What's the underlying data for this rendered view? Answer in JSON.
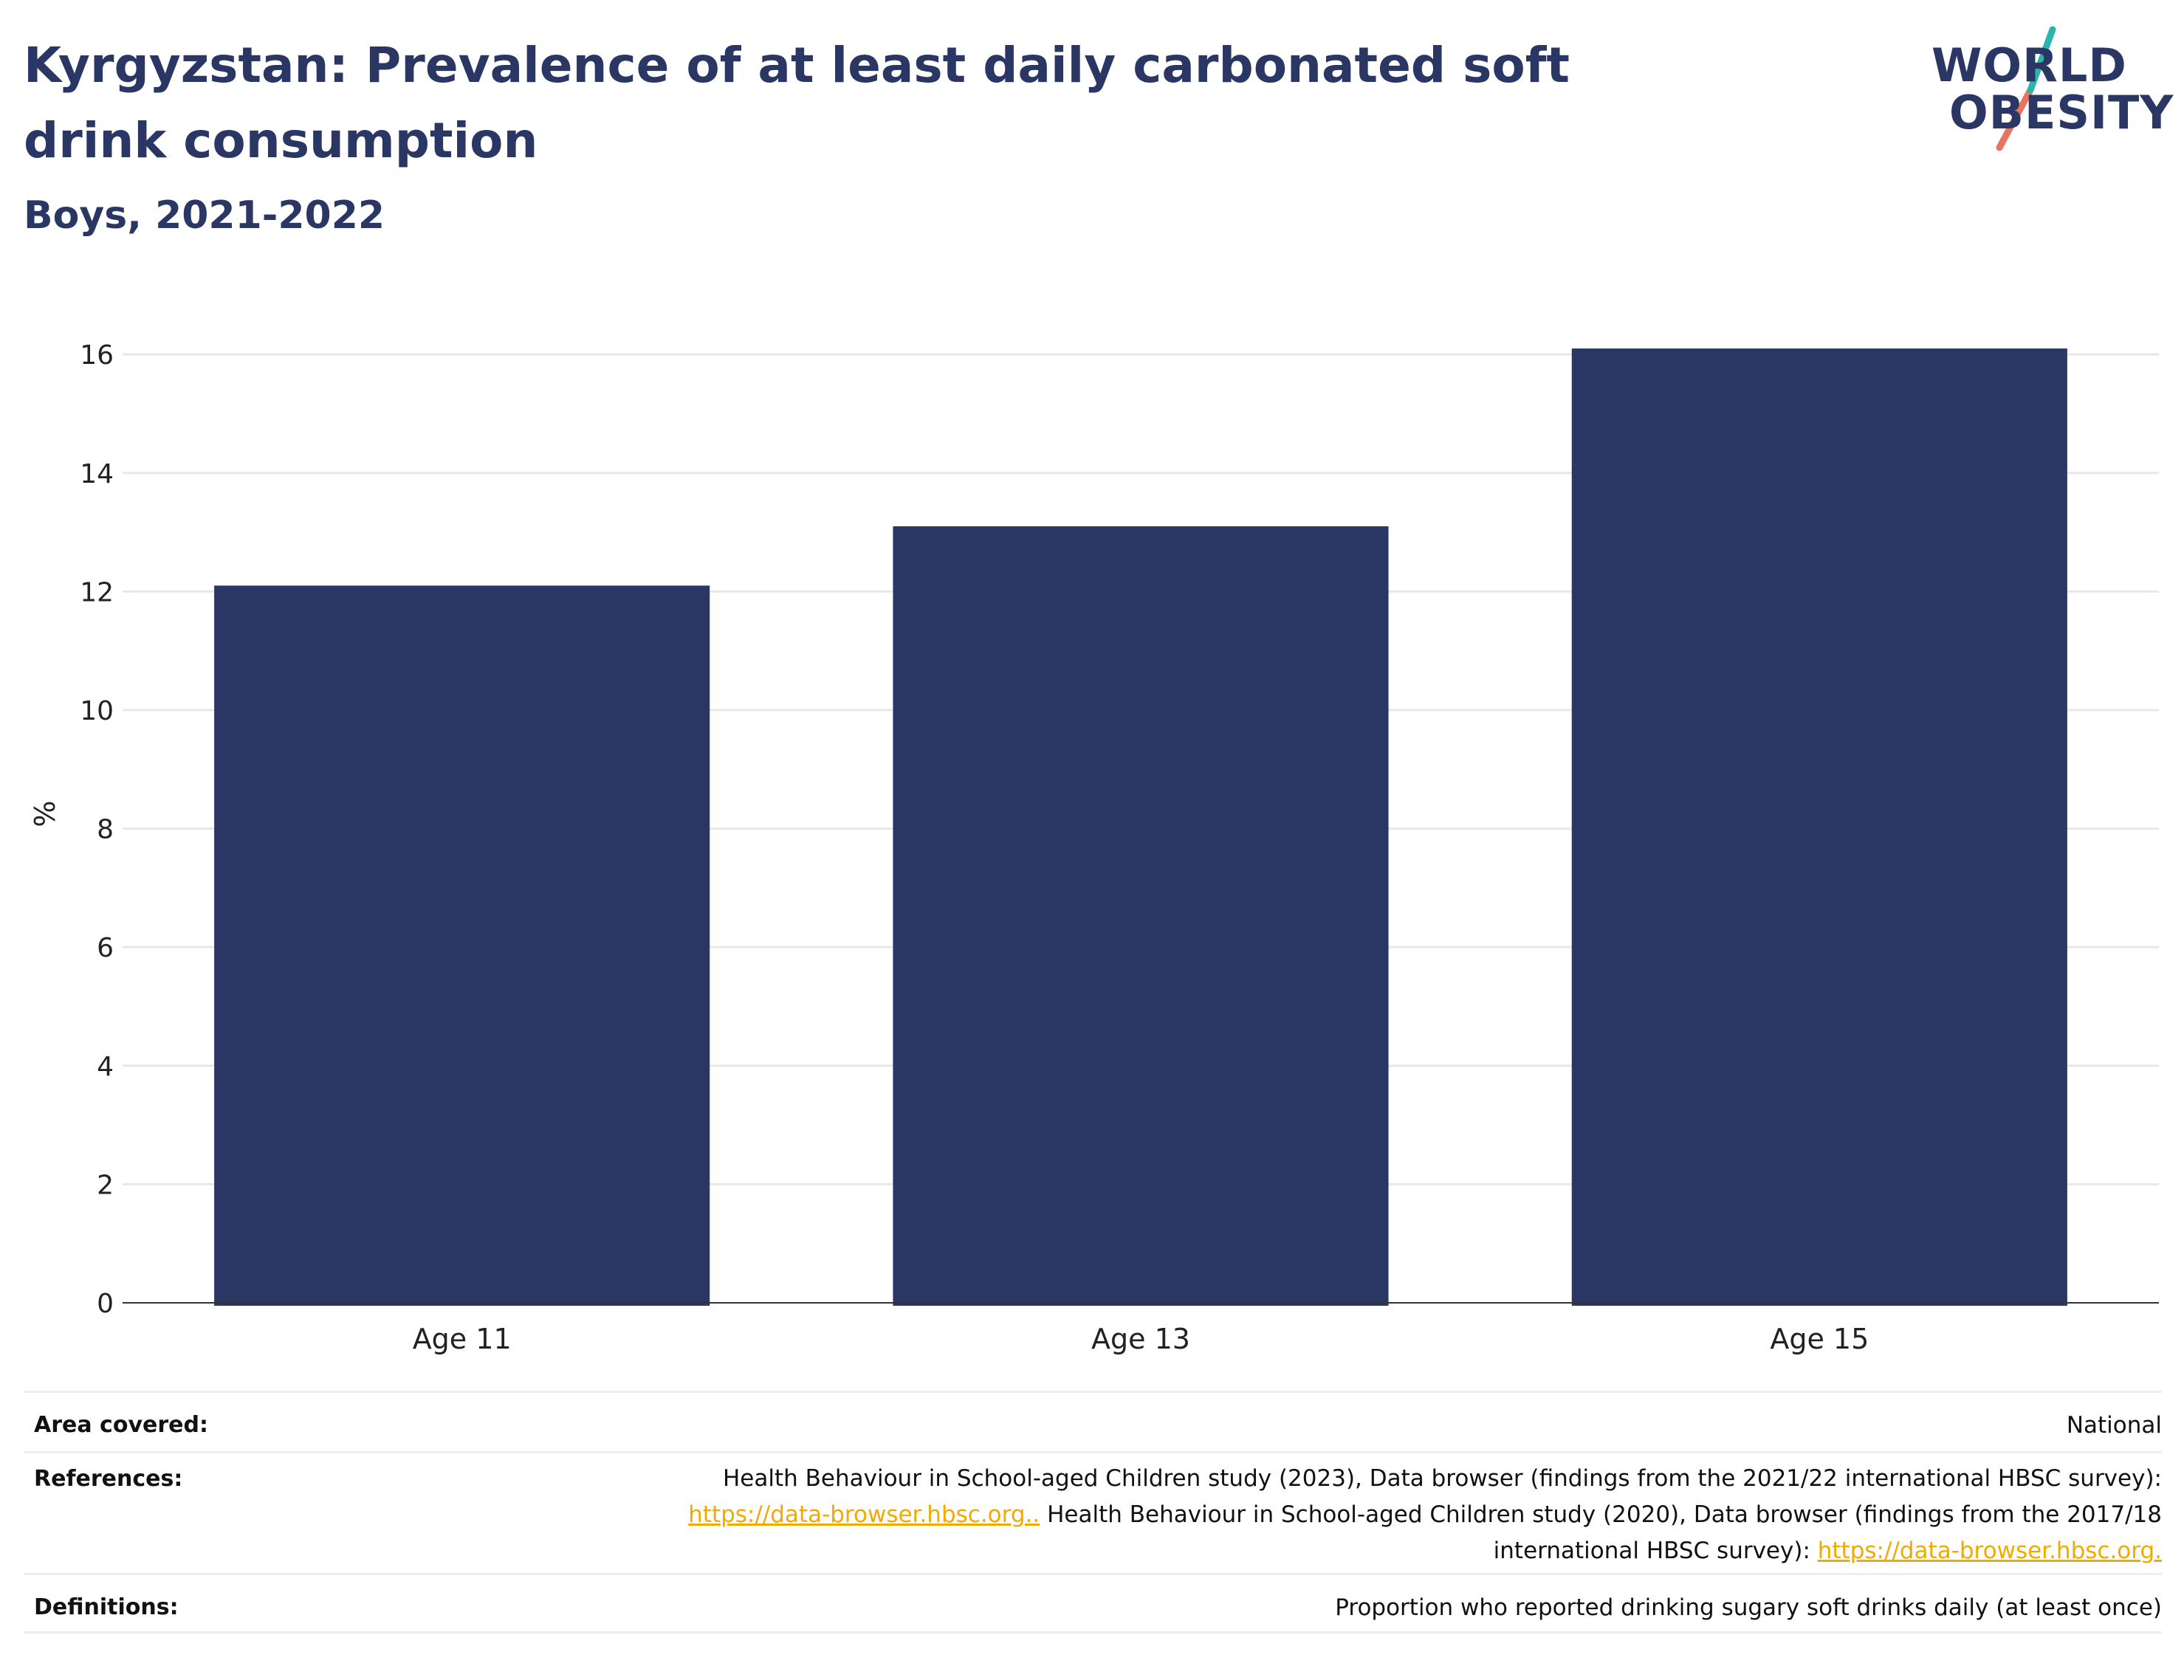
{
  "header": {
    "title": "Kyrgyzstan: Prevalence of at least daily carbonated soft drink consumption",
    "subtitle": "Boys, 2021-2022"
  },
  "logo": {
    "line1": "WORLD",
    "line2": "OBESITY",
    "colors": {
      "text": "#2a3663",
      "slash_teal": "#2bb3ad",
      "slash_coral": "#e8735e"
    }
  },
  "chart_data": {
    "type": "bar",
    "categories": [
      "Age 11",
      "Age 13",
      "Age 15"
    ],
    "values": [
      12.1,
      13.1,
      16.1
    ],
    "title": "",
    "xlabel": "",
    "ylabel": "%",
    "ylim": [
      0,
      16.5
    ],
    "yticks": [
      0,
      2,
      4,
      6,
      8,
      10,
      12,
      14,
      16
    ],
    "grid": true,
    "legend": "none",
    "bar_color": "#2a3663"
  },
  "info": {
    "area_label": "Area covered:",
    "area_value": "National",
    "references_label": "References:",
    "ref_text_1": "Health Behaviour in School-aged Children study (2023), Data browser (findings from the 2021/22 international HBSC survey):",
    "ref_link_1": "https://data-browser.hbsc.org..",
    "ref_text_2": " Health Behaviour in School-aged Children study (2020), Data browser (findings from the 2017/18",
    "ref_text_3": "international HBSC survey): ",
    "ref_link_2": "https://data-browser.hbsc.org.",
    "definitions_label": "Definitions:",
    "definitions_value": "Proportion who reported drinking sugary soft drinks daily (at least once)"
  }
}
